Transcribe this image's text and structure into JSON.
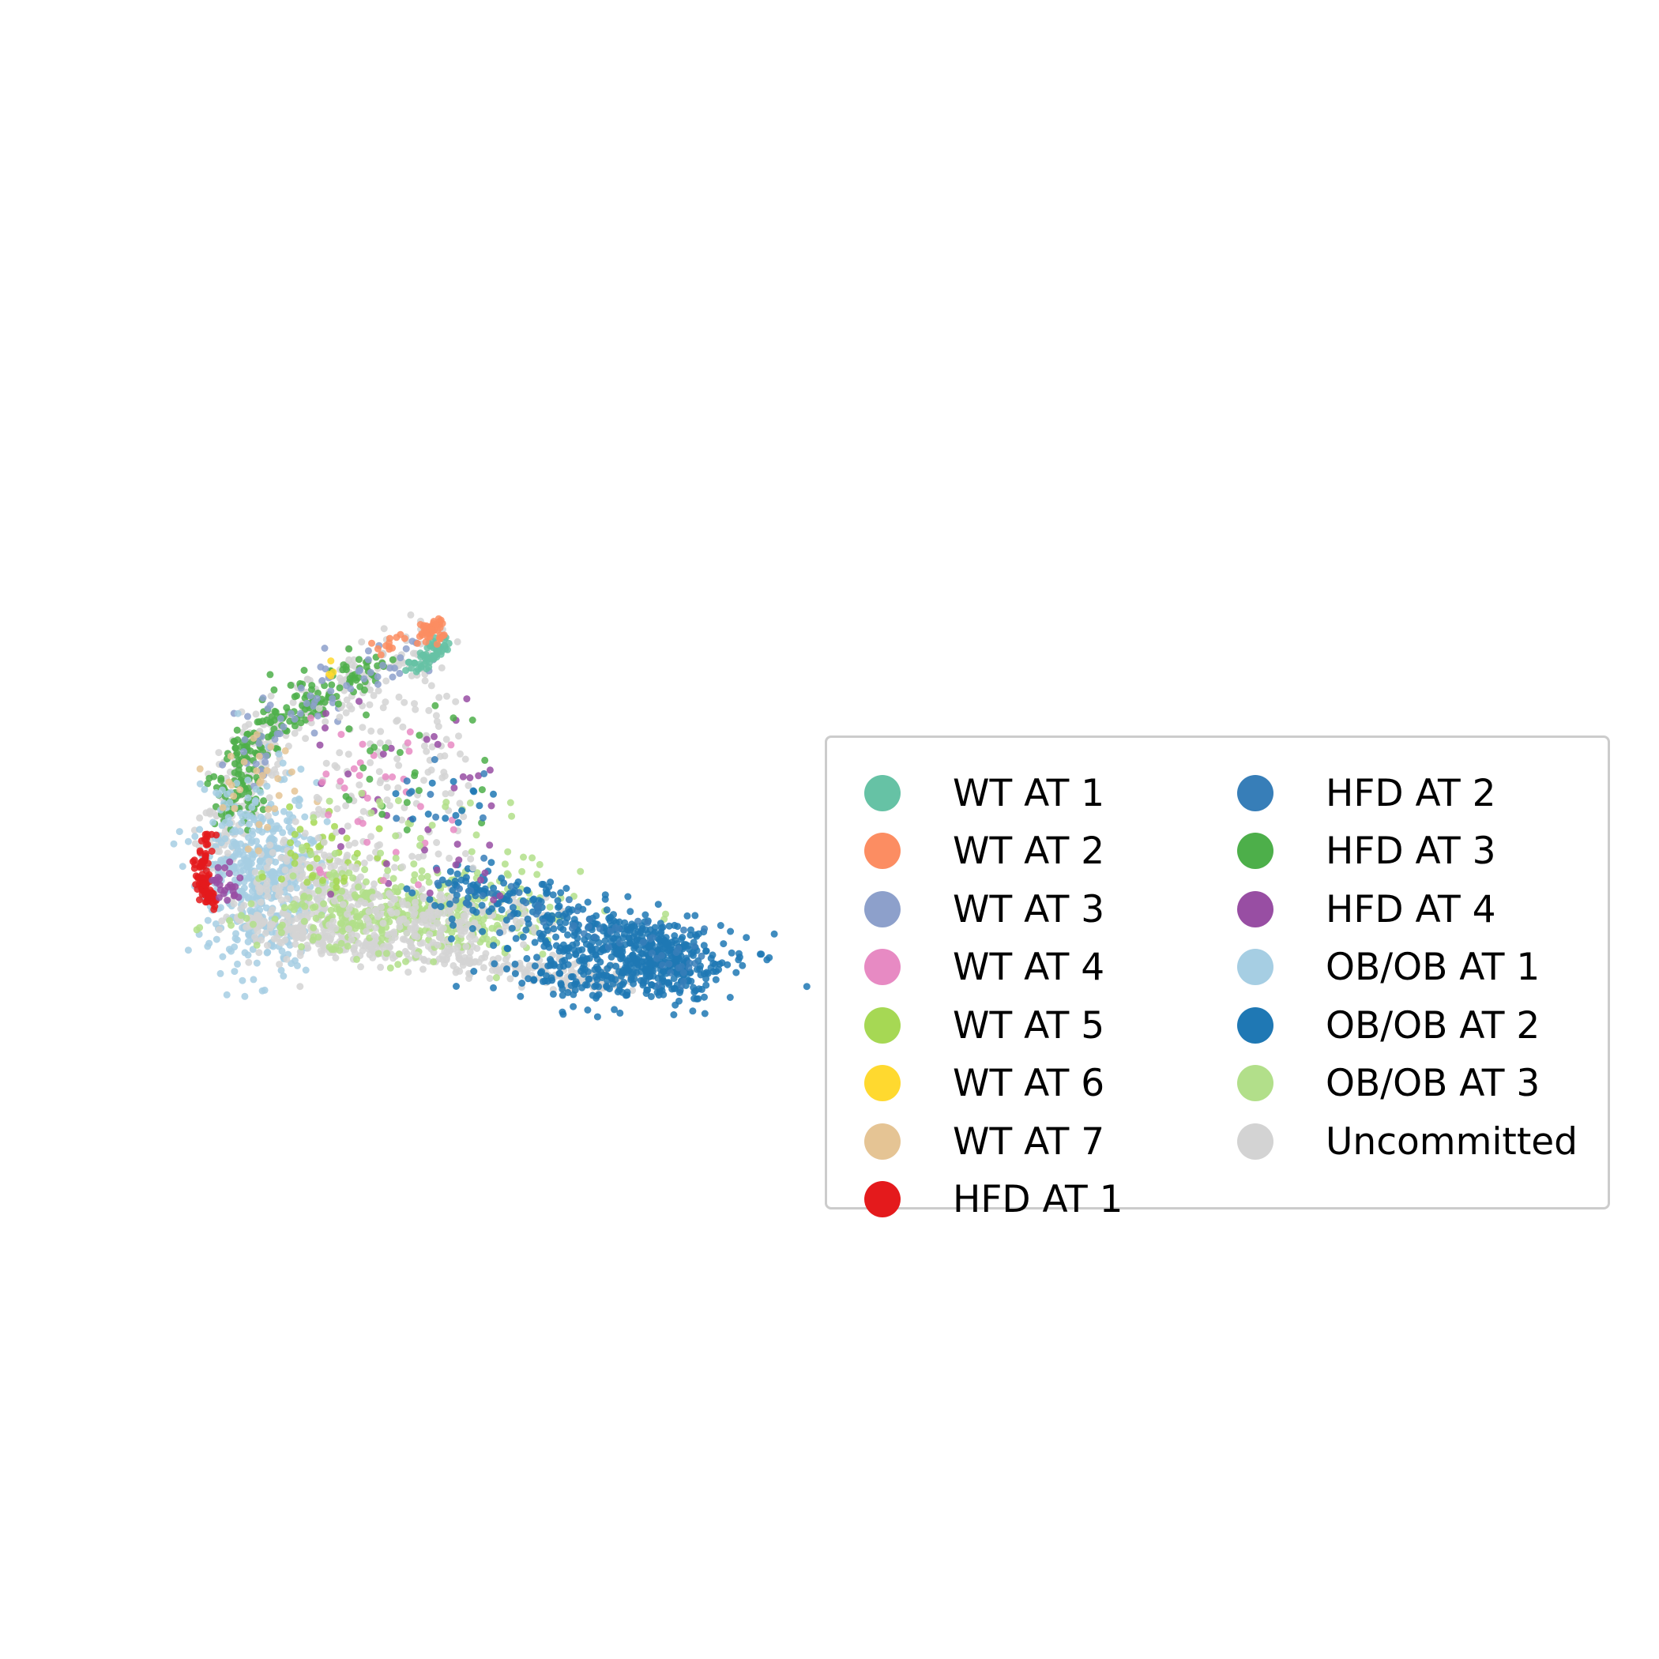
{
  "chart_data": {
    "type": "scatter",
    "title": "",
    "xlabel": "",
    "ylabel": "",
    "axes_visible": false,
    "grid": false,
    "legend_placement": "center-right",
    "legend_columns": 2,
    "series": [
      {
        "name": "WT AT 1",
        "color": "#66c2a5"
      },
      {
        "name": "WT AT 2",
        "color": "#fc8d62"
      },
      {
        "name": "WT AT 3",
        "color": "#8da0cb"
      },
      {
        "name": "WT AT 4",
        "color": "#e78ac3"
      },
      {
        "name": "WT AT 5",
        "color": "#a6d854"
      },
      {
        "name": "WT AT 6",
        "color": "#ffd92f"
      },
      {
        "name": "WT AT 7",
        "color": "#e5c494"
      },
      {
        "name": "HFD AT 1",
        "color": "#e41a1c"
      },
      {
        "name": "HFD AT 2",
        "color": "#377eb8"
      },
      {
        "name": "HFD AT 3",
        "color": "#4daf4a"
      },
      {
        "name": "HFD AT 4",
        "color": "#984ea3"
      },
      {
        "name": "OB/OB AT 1",
        "color": "#a6cee3"
      },
      {
        "name": "OB/OB AT 2",
        "color": "#1f78b4"
      },
      {
        "name": "OB/OB AT 3",
        "color": "#b2df8a"
      },
      {
        "name": "Uncommitted",
        "color": "#d3d3d3"
      }
    ]
  }
}
